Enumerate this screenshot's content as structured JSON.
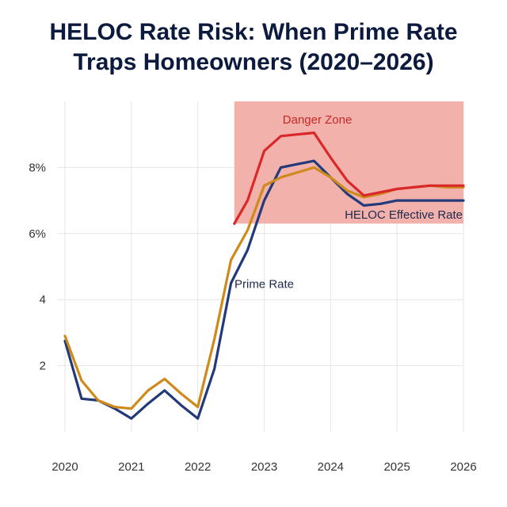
{
  "chart_data": {
    "type": "line",
    "title_lines": [
      "HELOC Rate Risk: When Prime Rate",
      "Traps Homeowners (2020–2026)"
    ],
    "x_ticks": [
      "2020",
      "2021",
      "2022",
      "2023",
      "2024",
      "2025",
      "2026"
    ],
    "y_ticks": [
      {
        "value": 2,
        "label": "2"
      },
      {
        "value": 4,
        "label": "4"
      },
      {
        "value": 6,
        "label": "6%"
      },
      {
        "value": 8,
        "label": "8%"
      }
    ],
    "xlim": [
      2020,
      2026
    ],
    "ylim": [
      0,
      10
    ],
    "grid": true,
    "shaded_region": {
      "label": "Danger Zone",
      "x_start": 2022.55,
      "x_end": 2026,
      "color": "#f2aaa5"
    },
    "annotations": [
      {
        "text": "HELOC Effective Rate",
        "x": 2025.1,
        "y": 6.45,
        "color": "#1d2a4d"
      },
      {
        "text": "Prime Rate",
        "x": 2023.0,
        "y": 4.35,
        "color": "#1d2a4d"
      }
    ],
    "series": [
      {
        "color": "#223a7a",
        "x": [
          2020,
          2020.25,
          2020.5,
          2020.75,
          2021,
          2021.25,
          2021.5,
          2021.75,
          2022,
          2022.25,
          2022.5,
          2022.75,
          2023,
          2023.25,
          2023.5,
          2023.75,
          2024,
          2024.25,
          2024.5,
          2024.75,
          2025,
          2025.25,
          2025.5,
          2025.75,
          2026
        ],
        "values": [
          2.75,
          1.0,
          0.95,
          0.7,
          0.4,
          0.85,
          1.25,
          0.8,
          0.4,
          1.9,
          4.5,
          5.5,
          7.0,
          8.0,
          8.1,
          8.2,
          7.7,
          7.2,
          6.85,
          6.9,
          7.0,
          7.0,
          7.0,
          7.0,
          7.0
        ]
      },
      {
        "color": "#cf8a1c",
        "x": [
          2020,
          2020.25,
          2020.5,
          2020.75,
          2021,
          2021.25,
          2021.5,
          2021.75,
          2022,
          2022.25,
          2022.5,
          2022.75,
          2023,
          2023.25,
          2023.5,
          2023.75,
          2024,
          2024.25,
          2024.5,
          2024.75,
          2025,
          2025.25,
          2025.5,
          2025.75,
          2026
        ],
        "values": [
          2.9,
          1.55,
          0.95,
          0.75,
          0.7,
          1.25,
          1.6,
          1.15,
          0.75,
          2.8,
          5.2,
          6.1,
          7.45,
          7.7,
          7.85,
          8.0,
          7.7,
          7.3,
          7.1,
          7.2,
          7.35,
          7.4,
          7.45,
          7.4,
          7.4
        ]
      },
      {
        "color": "#d8282a",
        "x": [
          2022.55,
          2022.75,
          2023,
          2023.25,
          2023.5,
          2023.75,
          2024,
          2024.25,
          2024.5,
          2024.75,
          2025,
          2025.25,
          2025.5,
          2025.75,
          2026
        ],
        "values": [
          6.3,
          7.0,
          8.5,
          8.95,
          9.0,
          9.05,
          8.3,
          7.6,
          7.15,
          7.25,
          7.35,
          7.4,
          7.45,
          7.45,
          7.45
        ]
      }
    ]
  }
}
